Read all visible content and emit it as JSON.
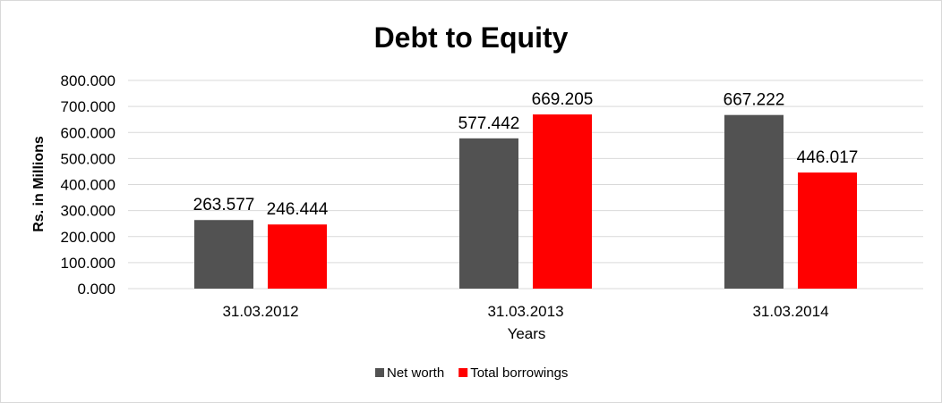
{
  "chart_data": {
    "type": "bar",
    "title": "Debt to Equity",
    "xlabel": "Years",
    "ylabel": "Rs. in Millions",
    "categories": [
      "31.03.2012",
      "31.03.2013",
      "31.03.2014"
    ],
    "series": [
      {
        "name": "Net worth",
        "color": "#525252",
        "values": [
          263.577,
          577.442,
          667.222
        ],
        "labels": [
          "263.577",
          "577.442",
          "667.222"
        ]
      },
      {
        "name": "Total borrowings",
        "color": "#ff0000",
        "values": [
          246.444,
          669.205,
          446.017
        ],
        "labels": [
          "246.444",
          "669.205",
          "446.017"
        ]
      }
    ],
    "ylim": [
      0,
      800
    ],
    "yticks": [
      "0.000",
      "100.000",
      "200.000",
      "300.000",
      "400.000",
      "500.000",
      "600.000",
      "700.000",
      "800.000"
    ],
    "grid": true,
    "legend_position": "bottom"
  }
}
